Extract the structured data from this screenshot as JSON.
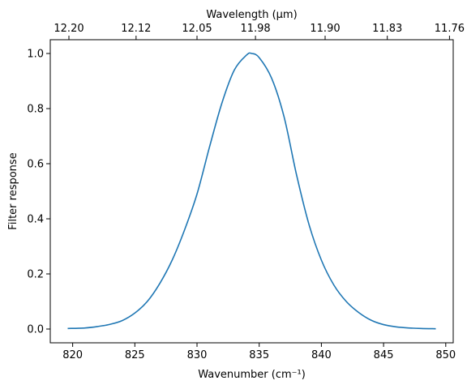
{
  "chart_data": {
    "type": "line",
    "xlabel": "Wavenumber (cm⁻¹)",
    "ylabel": "Filter response",
    "top_xlabel": "Wavelength (μm)",
    "xlim": [
      818.2,
      850.6
    ],
    "ylim": [
      -0.05,
      1.05
    ],
    "x_ticks": [
      820,
      825,
      830,
      835,
      840,
      845,
      850
    ],
    "x_tick_labels": [
      "820",
      "825",
      "830",
      "835",
      "840",
      "845",
      "850"
    ],
    "y_ticks": [
      0.0,
      0.2,
      0.4,
      0.6,
      0.8,
      1.0
    ],
    "y_tick_labels": [
      "0.0",
      "0.2",
      "0.4",
      "0.6",
      "0.8",
      "1.0"
    ],
    "top_x_ticks": [
      819.7,
      825.1,
      830.0,
      834.7,
      840.3,
      845.3,
      850.3
    ],
    "top_x_tick_labels": [
      "12.20",
      "12.12",
      "12.05",
      "11.98",
      "11.90",
      "11.83",
      "11.76"
    ],
    "grid": false,
    "color": "#1f77b4",
    "series": [
      {
        "x": [
          819.6,
          821,
          822,
          823,
          824,
          825,
          826,
          827,
          828,
          829,
          830,
          831,
          832,
          833,
          834,
          834.4,
          835,
          836,
          837,
          838,
          839,
          840,
          841,
          842,
          843,
          844,
          845,
          846,
          847,
          848,
          849.2
        ],
        "values": [
          0.002,
          0.004,
          0.009,
          0.017,
          0.031,
          0.058,
          0.1,
          0.165,
          0.25,
          0.36,
          0.49,
          0.66,
          0.82,
          0.94,
          0.995,
          1.0,
          0.985,
          0.91,
          0.77,
          0.56,
          0.38,
          0.25,
          0.16,
          0.1,
          0.06,
          0.032,
          0.016,
          0.008,
          0.004,
          0.002,
          0.001
        ]
      }
    ]
  }
}
